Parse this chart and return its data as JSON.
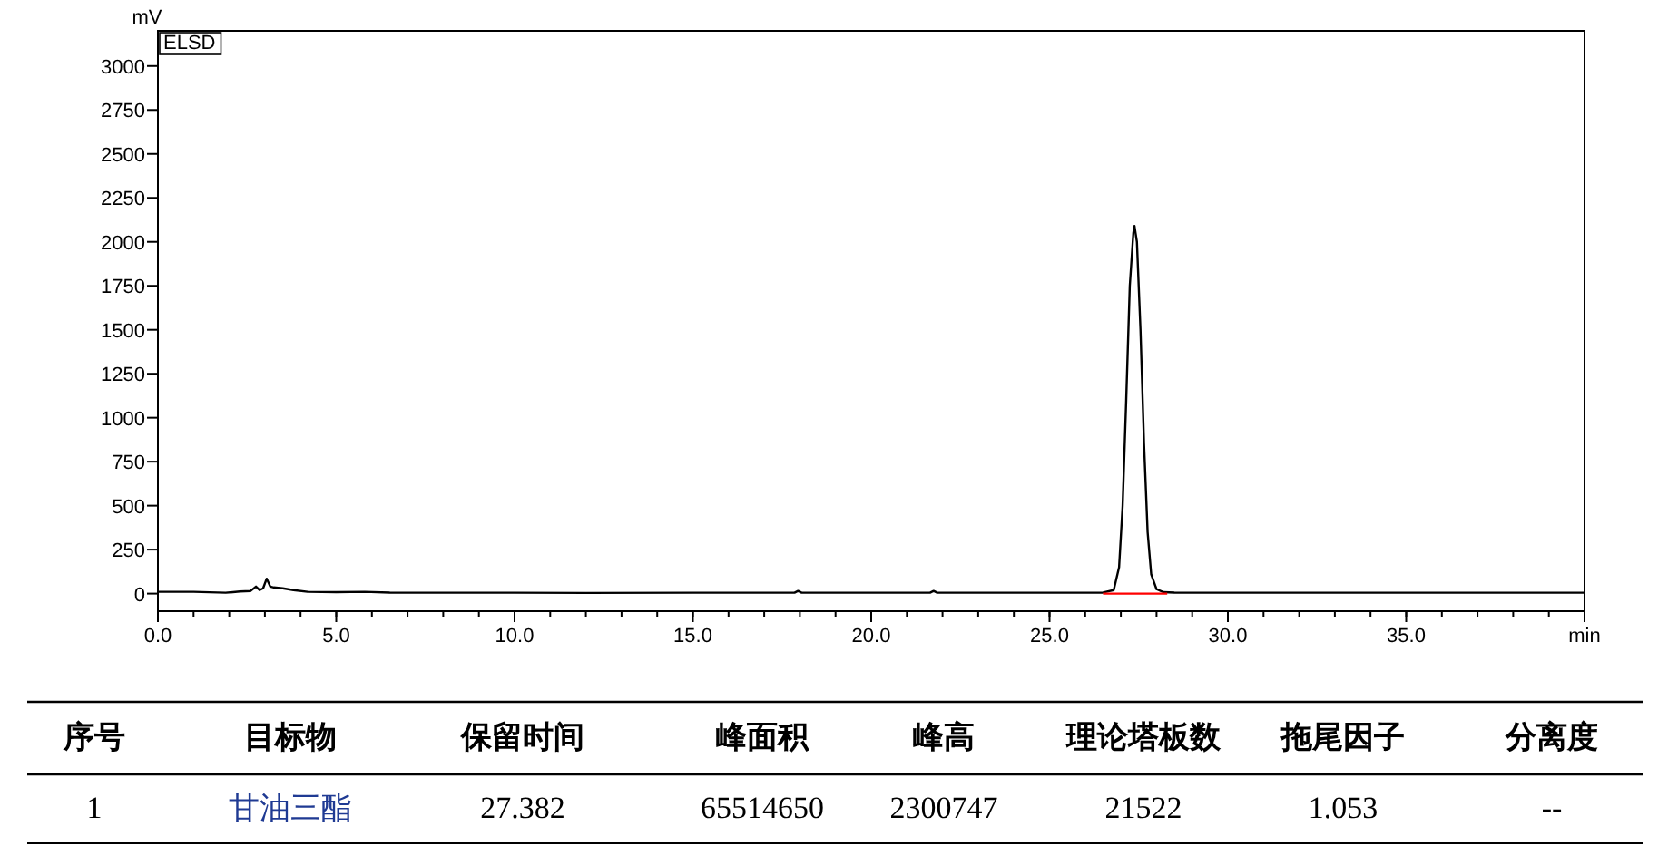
{
  "chart_data": {
    "type": "line",
    "ylabel": "mV",
    "grid": false,
    "marker": "none",
    "line_style": "solid",
    "xlim": [
      0,
      40
    ],
    "xticks": [
      {
        "value": 0,
        "label": "0.0"
      },
      {
        "value": 5,
        "label": "5.0"
      },
      {
        "value": 10,
        "label": "10.0"
      },
      {
        "value": 15,
        "label": "15.0"
      },
      {
        "value": 20,
        "label": "20.0"
      },
      {
        "value": 25,
        "label": "25.0"
      },
      {
        "value": 30,
        "label": "30.0"
      },
      {
        "value": 35,
        "label": "35.0"
      },
      {
        "value": 40,
        "label": "min"
      }
    ],
    "ylim": [
      -100,
      3200
    ],
    "yticks": [
      0,
      250,
      500,
      750,
      1000,
      1250,
      1500,
      1750,
      2000,
      2250,
      2500,
      2750,
      3000
    ],
    "series": [
      {
        "color": "#000000",
        "x": [
          0,
          1,
          1.9,
          2.3,
          2.6,
          2.75,
          2.85,
          2.95,
          3.05,
          3.15,
          3.25,
          3.5,
          3.8,
          4.2,
          5,
          5.8,
          6.5,
          8,
          10,
          12,
          15,
          17.85,
          17.95,
          18.05,
          20,
          21.65,
          21.75,
          21.85,
          24,
          26,
          26.5,
          26.8,
          26.95,
          27.05,
          27.15,
          27.25,
          27.35,
          27.382,
          27.45,
          27.55,
          27.65,
          27.75,
          27.85,
          28.0,
          28.2,
          28.5,
          30,
          35,
          40
        ],
        "values": [
          10,
          10,
          5,
          12,
          15,
          40,
          20,
          30,
          85,
          40,
          35,
          30,
          20,
          10,
          8,
          10,
          6,
          5,
          5,
          4,
          5,
          5,
          15,
          5,
          5,
          5,
          15,
          5,
          5,
          5,
          6,
          20,
          150,
          500,
          1100,
          1750,
          2050,
          2090,
          2000,
          1500,
          850,
          350,
          110,
          25,
          8,
          6,
          5,
          5,
          5
        ]
      },
      {
        "color": "#ff0000",
        "x": [
          26.5,
          28.3
        ],
        "values": [
          0,
          0
        ]
      }
    ],
    "annotations": [
      "ELSD",
      "序号",
      "目标物",
      "保留时间",
      "峰面积",
      "峰高",
      "理论塔板数",
      "拖尾因子",
      "分离度",
      "1",
      "甘油三酯",
      "27.382",
      "65514650",
      "2300747",
      "21522",
      "1.053",
      "--"
    ]
  }
}
